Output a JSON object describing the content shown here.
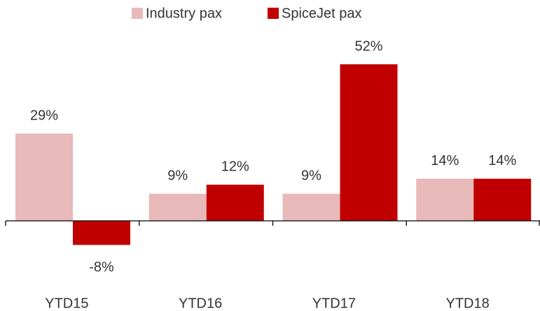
{
  "chart_data": {
    "type": "bar",
    "categories": [
      "YTD15",
      "YTD16",
      "YTD17",
      "YTD18"
    ],
    "series": [
      {
        "name": "Industry pax",
        "color": "#e8b9b9",
        "values": [
          29,
          9,
          9,
          14
        ],
        "value_labels": [
          "29%",
          "9%",
          "9%",
          "14%"
        ]
      },
      {
        "name": "SpiceJet pax",
        "color": "#c00000",
        "values": [
          -8,
          12,
          52,
          14
        ],
        "value_labels": [
          "-8%",
          "12%",
          "52%",
          "14%"
        ]
      }
    ],
    "legend": "top"
  }
}
